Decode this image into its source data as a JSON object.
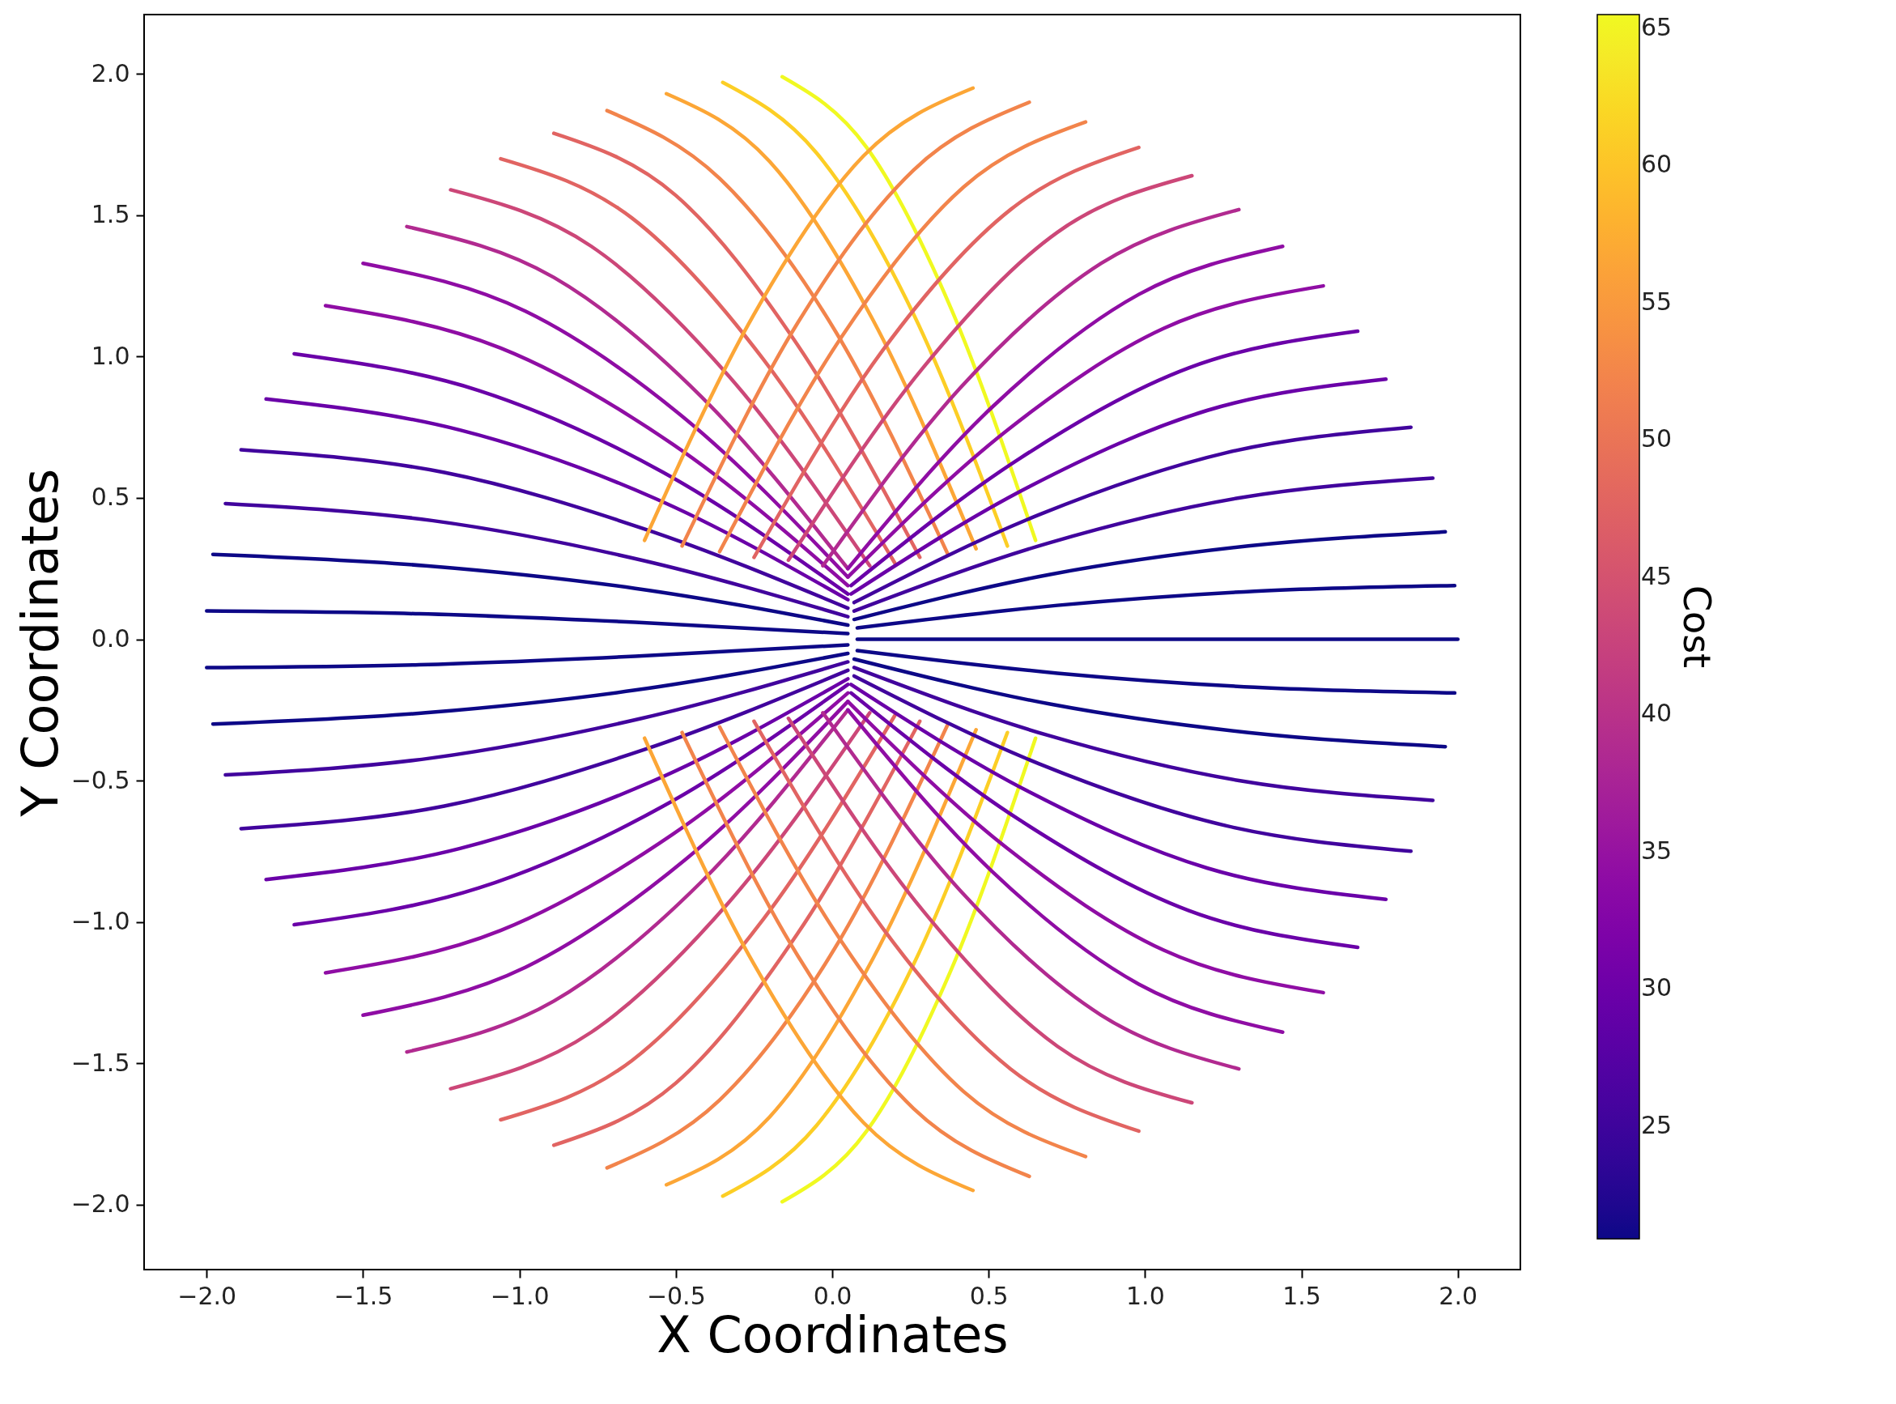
{
  "chart_data": {
    "type": "line",
    "xlabel": "X Coordinates",
    "ylabel": "Y Coordinates",
    "clabel": "Cost",
    "clim": [
      20.9,
      65.5
    ],
    "cticks": [
      25,
      30,
      35,
      40,
      45,
      50,
      55,
      60,
      65
    ],
    "xlim": [
      -2.2,
      2.2
    ],
    "ylim": [
      -2.23,
      2.21
    ],
    "xticks": [
      {
        "value": -2,
        "label": "−2.0"
      },
      {
        "value": -1.5,
        "label": "−1.5"
      },
      {
        "value": -1,
        "label": "−1.0"
      },
      {
        "value": -0.5,
        "label": "−0.5"
      },
      {
        "value": 0,
        "label": "0.0"
      },
      0.5,
      {
        "value": 1,
        "label": "1.0"
      },
      1.5,
      {
        "value": 2,
        "label": "2.0"
      }
    ],
    "yticks": [
      {
        "value": -2,
        "label": "−2.0"
      },
      {
        "value": -1.5,
        "label": "−1.5"
      },
      {
        "value": -1,
        "label": "−1.0"
      },
      {
        "value": -0.5,
        "label": "−0.5"
      },
      {
        "value": 0,
        "label": "0.0"
      },
      0.5,
      {
        "value": 1,
        "label": "1.0"
      },
      1.5,
      {
        "value": 2,
        "label": "2.0"
      }
    ],
    "series": [
      {
        "color": "#0d0887",
        "x": [
          -2,
          -1.32,
          -0.63,
          0.05
        ],
        "values": [
          0.1,
          0.09,
          0.06,
          0.02
        ]
      },
      {
        "color": "#0d0887",
        "x": [
          -1.98,
          -1.3,
          -0.63,
          0.05
        ],
        "values": [
          0.3,
          0.26,
          0.18,
          0.05
        ]
      },
      {
        "color": "#41049d",
        "x": [
          -1.94,
          -1.28,
          -0.61,
          0.05
        ],
        "values": [
          0.48,
          0.42,
          0.28,
          0.08
        ]
      },
      {
        "color": "#41049d",
        "x": [
          -1.89,
          -1.24,
          -0.6,
          0.05
        ],
        "values": [
          0.67,
          0.59,
          0.39,
          0.11
        ]
      },
      {
        "color": "#6a00a8",
        "x": [
          -1.81,
          -1.19,
          -0.57,
          0.05
        ],
        "values": [
          0.85,
          0.74,
          0.5,
          0.14
        ]
      },
      {
        "color": "#6a00a8",
        "x": [
          -1.72,
          -1.13,
          -0.54,
          0.05
        ],
        "values": [
          1.01,
          0.88,
          0.59,
          0.16
        ]
      },
      {
        "color": "#8f0da4",
        "x": [
          -1.62,
          -1.06,
          -0.51,
          0.05
        ],
        "values": [
          1.18,
          1.03,
          0.69,
          0.19
        ]
      },
      {
        "color": "#8f0da4",
        "x": [
          -1.5,
          -0.98,
          -0.47,
          0.05
        ],
        "values": [
          1.33,
          1.16,
          0.78,
          0.22
        ]
      },
      {
        "color": "#b12a90",
        "x": [
          -1.36,
          -0.89,
          -0.42,
          0.05
        ],
        "values": [
          1.46,
          1.28,
          0.86,
          0.25
        ]
      },
      {
        "color": "#cc4778",
        "x": [
          -1.22,
          -0.77,
          -0.33,
          0.12
        ],
        "values": [
          1.59,
          1.39,
          0.93,
          0.26
        ]
      },
      {
        "color": "#e16462",
        "x": [
          -1.06,
          -0.64,
          -0.22,
          0.2
        ],
        "values": [
          1.7,
          1.49,
          0.99,
          0.27
        ]
      },
      {
        "color": "#e16462",
        "x": [
          -0.89,
          -0.5,
          -0.11,
          0.28
        ],
        "values": [
          1.79,
          1.57,
          1.04,
          0.29
        ]
      },
      {
        "color": "#f2844b",
        "x": [
          -0.72,
          -0.36,
          0.01,
          0.37
        ],
        "values": [
          1.87,
          1.63,
          1.09,
          0.3
        ]
      },
      {
        "color": "#fca636",
        "x": [
          -0.53,
          -0.2,
          0.13,
          0.46
        ],
        "values": [
          1.93,
          1.69,
          1.13,
          0.32
        ]
      },
      {
        "color": "#fcce25",
        "x": [
          -0.35,
          -0.05,
          0.26,
          0.56
        ],
        "values": [
          1.97,
          1.72,
          1.15,
          0.33
        ]
      },
      {
        "color": "#f0f921",
        "x": [
          -0.16,
          0.11,
          0.38,
          0.65
        ],
        "values": [
          1.99,
          1.74,
          1.17,
          0.35
        ]
      },
      {
        "color": "#0d0887",
        "x": [
          2,
          1.36,
          0.72,
          0.08
        ],
        "values": [
          0,
          0,
          0,
          0
        ]
      },
      {
        "color": "#0d0887",
        "x": [
          1.99,
          1.35,
          0.72,
          0.08
        ],
        "values": [
          0.19,
          0.17,
          0.12,
          0.04
        ]
      },
      {
        "color": "#0d0887",
        "x": [
          1.96,
          1.33,
          0.7,
          0.07
        ],
        "values": [
          0.38,
          0.33,
          0.23,
          0.07
        ]
      },
      {
        "color": "#41049d",
        "x": [
          1.92,
          1.3,
          0.69,
          0.07
        ],
        "values": [
          0.57,
          0.5,
          0.34,
          0.1
        ]
      },
      {
        "color": "#41049d",
        "x": [
          1.85,
          1.26,
          0.66,
          0.07
        ],
        "values": [
          0.75,
          0.66,
          0.44,
          0.13
        ]
      },
      {
        "color": "#6a00a8",
        "x": [
          1.77,
          1.2,
          0.63,
          0.06
        ],
        "values": [
          0.92,
          0.81,
          0.54,
          0.16
        ]
      },
      {
        "color": "#6a00a8",
        "x": [
          1.68,
          1.14,
          0.6,
          0.06
        ],
        "values": [
          1.09,
          0.96,
          0.64,
          0.19
        ]
      },
      {
        "color": "#8f0da4",
        "x": [
          1.57,
          1.06,
          0.56,
          0.05
        ],
        "values": [
          1.25,
          1.1,
          0.74,
          0.22
        ]
      },
      {
        "color": "#8f0da4",
        "x": [
          1.44,
          0.98,
          0.51,
          0.05
        ],
        "values": [
          1.39,
          1.22,
          0.82,
          0.25
        ]
      },
      {
        "color": "#b12a90",
        "x": [
          1.3,
          0.86,
          0.41,
          -0.03
        ],
        "values": [
          1.52,
          1.33,
          0.89,
          0.26
        ]
      },
      {
        "color": "#cc4778",
        "x": [
          1.15,
          0.72,
          0.29,
          -0.14
        ],
        "values": [
          1.64,
          1.44,
          0.96,
          0.28
        ]
      },
      {
        "color": "#e16462",
        "x": [
          0.98,
          0.57,
          0.16,
          -0.25
        ],
        "values": [
          1.74,
          1.52,
          1.02,
          0.29
        ]
      },
      {
        "color": "#f2844b",
        "x": [
          0.81,
          0.42,
          0.03,
          -0.36
        ],
        "values": [
          1.83,
          1.6,
          1.07,
          0.31
        ]
      },
      {
        "color": "#f2844b",
        "x": [
          0.63,
          0.26,
          -0.11,
          -0.48
        ],
        "values": [
          1.9,
          1.66,
          1.12,
          0.33
        ]
      },
      {
        "color": "#fca636",
        "x": [
          0.45,
          0.1,
          -0.25,
          -0.6
        ],
        "values": [
          1.95,
          1.71,
          1.15,
          0.35
        ]
      },
      {
        "color": "#0d0887",
        "x": [
          -2,
          -1.32,
          -0.63,
          0.05
        ],
        "values": [
          -0.1,
          -0.09,
          -0.06,
          -0.02
        ]
      },
      {
        "color": "#0d0887",
        "x": [
          -1.98,
          -1.3,
          -0.63,
          0.05
        ],
        "values": [
          -0.3,
          -0.26,
          -0.18,
          -0.05
        ]
      },
      {
        "color": "#41049d",
        "x": [
          -1.94,
          -1.28,
          -0.61,
          0.05
        ],
        "values": [
          -0.48,
          -0.42,
          -0.28,
          -0.08
        ]
      },
      {
        "color": "#41049d",
        "x": [
          -1.89,
          -1.24,
          -0.6,
          0.05
        ],
        "values": [
          -0.67,
          -0.59,
          -0.39,
          -0.11
        ]
      },
      {
        "color": "#6a00a8",
        "x": [
          -1.81,
          -1.19,
          -0.57,
          0.05
        ],
        "values": [
          -0.85,
          -0.74,
          -0.5,
          -0.14
        ]
      },
      {
        "color": "#6a00a8",
        "x": [
          -1.72,
          -1.13,
          -0.54,
          0.05
        ],
        "values": [
          -1.01,
          -0.88,
          -0.59,
          -0.16
        ]
      },
      {
        "color": "#8f0da4",
        "x": [
          -1.62,
          -1.06,
          -0.51,
          0.05
        ],
        "values": [
          -1.18,
          -1.03,
          -0.69,
          -0.19
        ]
      },
      {
        "color": "#8f0da4",
        "x": [
          -1.5,
          -0.98,
          -0.47,
          0.05
        ],
        "values": [
          -1.33,
          -1.16,
          -0.78,
          -0.22
        ]
      },
      {
        "color": "#b12a90",
        "x": [
          -1.36,
          -0.89,
          -0.42,
          0.05
        ],
        "values": [
          -1.46,
          -1.28,
          -0.86,
          -0.25
        ]
      },
      {
        "color": "#cc4778",
        "x": [
          -1.22,
          -0.77,
          -0.33,
          0.12
        ],
        "values": [
          -1.59,
          -1.39,
          -0.93,
          -0.26
        ]
      },
      {
        "color": "#e16462",
        "x": [
          -1.06,
          -0.64,
          -0.22,
          0.2
        ],
        "values": [
          -1.7,
          -1.49,
          -0.99,
          -0.27
        ]
      },
      {
        "color": "#e16462",
        "x": [
          -0.89,
          -0.5,
          -0.11,
          0.28
        ],
        "values": [
          -1.79,
          -1.57,
          -1.04,
          -0.29
        ]
      },
      {
        "color": "#f2844b",
        "x": [
          -0.72,
          -0.36,
          0.01,
          0.37
        ],
        "values": [
          -1.87,
          -1.63,
          -1.09,
          -0.3
        ]
      },
      {
        "color": "#fca636",
        "x": [
          -0.53,
          -0.2,
          0.13,
          0.46
        ],
        "values": [
          -1.93,
          -1.69,
          -1.13,
          -0.32
        ]
      },
      {
        "color": "#fcce25",
        "x": [
          -0.35,
          -0.05,
          0.26,
          0.56
        ],
        "values": [
          -1.97,
          -1.72,
          -1.15,
          -0.33
        ]
      },
      {
        "color": "#f0f921",
        "x": [
          -0.16,
          0.11,
          0.38,
          0.65
        ],
        "values": [
          -1.99,
          -1.74,
          -1.17,
          -0.35
        ]
      },
      {
        "color": "#0d0887",
        "x": [
          1.99,
          1.35,
          0.72,
          0.08
        ],
        "values": [
          -0.19,
          -0.17,
          -0.12,
          -0.04
        ]
      },
      {
        "color": "#0d0887",
        "x": [
          1.96,
          1.33,
          0.7,
          0.07
        ],
        "values": [
          -0.38,
          -0.33,
          -0.23,
          -0.07
        ]
      },
      {
        "color": "#41049d",
        "x": [
          1.92,
          1.3,
          0.69,
          0.07
        ],
        "values": [
          -0.57,
          -0.5,
          -0.34,
          -0.1
        ]
      },
      {
        "color": "#41049d",
        "x": [
          1.85,
          1.26,
          0.66,
          0.07
        ],
        "values": [
          -0.75,
          -0.66,
          -0.44,
          -0.13
        ]
      },
      {
        "color": "#6a00a8",
        "x": [
          1.77,
          1.2,
          0.63,
          0.06
        ],
        "values": [
          -0.92,
          -0.81,
          -0.54,
          -0.16
        ]
      },
      {
        "color": "#6a00a8",
        "x": [
          1.68,
          1.14,
          0.6,
          0.06
        ],
        "values": [
          -1.09,
          -0.96,
          -0.64,
          -0.19
        ]
      },
      {
        "color": "#8f0da4",
        "x": [
          1.57,
          1.06,
          0.56,
          0.05
        ],
        "values": [
          -1.25,
          -1.1,
          -0.74,
          -0.22
        ]
      },
      {
        "color": "#8f0da4",
        "x": [
          1.44,
          0.98,
          0.51,
          0.05
        ],
        "values": [
          -1.39,
          -1.22,
          -0.82,
          -0.25
        ]
      },
      {
        "color": "#b12a90",
        "x": [
          1.3,
          0.86,
          0.41,
          -0.03
        ],
        "values": [
          -1.52,
          -1.33,
          -0.89,
          -0.26
        ]
      },
      {
        "color": "#cc4778",
        "x": [
          1.15,
          0.72,
          0.29,
          -0.14
        ],
        "values": [
          -1.64,
          -1.44,
          -0.96,
          -0.28
        ]
      },
      {
        "color": "#e16462",
        "x": [
          0.98,
          0.57,
          0.16,
          -0.25
        ],
        "values": [
          -1.74,
          -1.52,
          -1.02,
          -0.29
        ]
      },
      {
        "color": "#f2844b",
        "x": [
          0.81,
          0.42,
          0.03,
          -0.36
        ],
        "values": [
          -1.83,
          -1.6,
          -1.07,
          -0.31
        ]
      },
      {
        "color": "#f2844b",
        "x": [
          0.63,
          0.26,
          -0.11,
          -0.48
        ],
        "values": [
          -1.9,
          -1.66,
          -1.12,
          -0.33
        ]
      },
      {
        "color": "#fca636",
        "x": [
          0.45,
          0.1,
          -0.25,
          -0.6
        ],
        "values": [
          -1.95,
          -1.71,
          -1.15,
          -0.35
        ]
      }
    ]
  }
}
